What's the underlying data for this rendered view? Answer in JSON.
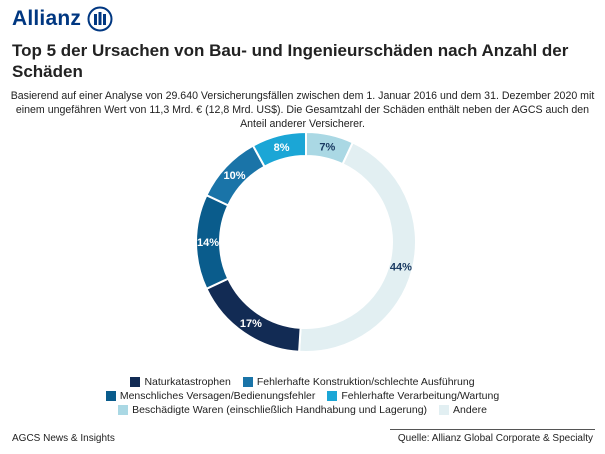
{
  "brand": {
    "name": "Allianz"
  },
  "header": {
    "title": "Top 5 der Ursachen von Bau- und Ingenieurschäden nach Anzahl der Schäden",
    "subtitle": "Basierend auf einer Analyse von 29.640 Versicherungsfällen zwischen dem 1. Januar 2016 und dem 31. Dezember 2020 mit einem ungefähren Wert von 11,3 Mrd. € (12,8 Mrd. US$). Die Gesamtzahl der Schäden enthält neben der AGCS auch den Anteil anderer Versicherer."
  },
  "chart_data": {
    "type": "pie",
    "variant": "donut",
    "legend_position": "bottom",
    "slices": [
      {
        "label": "Beschädigte Waren (einschließlich Handhabung und Lagerung)",
        "value": 7,
        "display": "7%",
        "color": "#aad8e4"
      },
      {
        "label": "Andere",
        "value": 44,
        "display": "44%",
        "color": "#e2eff2"
      },
      {
        "label": "Naturkatastrophen",
        "value": 17,
        "display": "17%",
        "color": "#122b54"
      },
      {
        "label": "Menschliches Versagen/Bedienungsfehler",
        "value": 14,
        "display": "14%",
        "color": "#0a5c8c"
      },
      {
        "label": "Fehlerhafte Konstruktion/schlechte Ausführung",
        "value": 10,
        "display": "10%",
        "color": "#1a74a8"
      },
      {
        "label": "Fehlerhafte Verarbeitung/Wartung",
        "value": 8,
        "display": "8%",
        "color": "#1ba6d6"
      }
    ],
    "legend": [
      [
        "Naturkatastrophen",
        "Fehlerhafte Konstruktion/schlechte Ausführung"
      ],
      [
        "Menschliches Versagen/Bedienungsfehler",
        "Fehlerhafte Verarbeitung/Wartung"
      ],
      [
        "Beschädigte Waren (einschließlich Handhabung und Lagerung)",
        "Andere"
      ]
    ]
  },
  "footer": {
    "left": "AGCS News & Insights",
    "right": "Quelle: Allianz Global Corporate & Specialty"
  }
}
